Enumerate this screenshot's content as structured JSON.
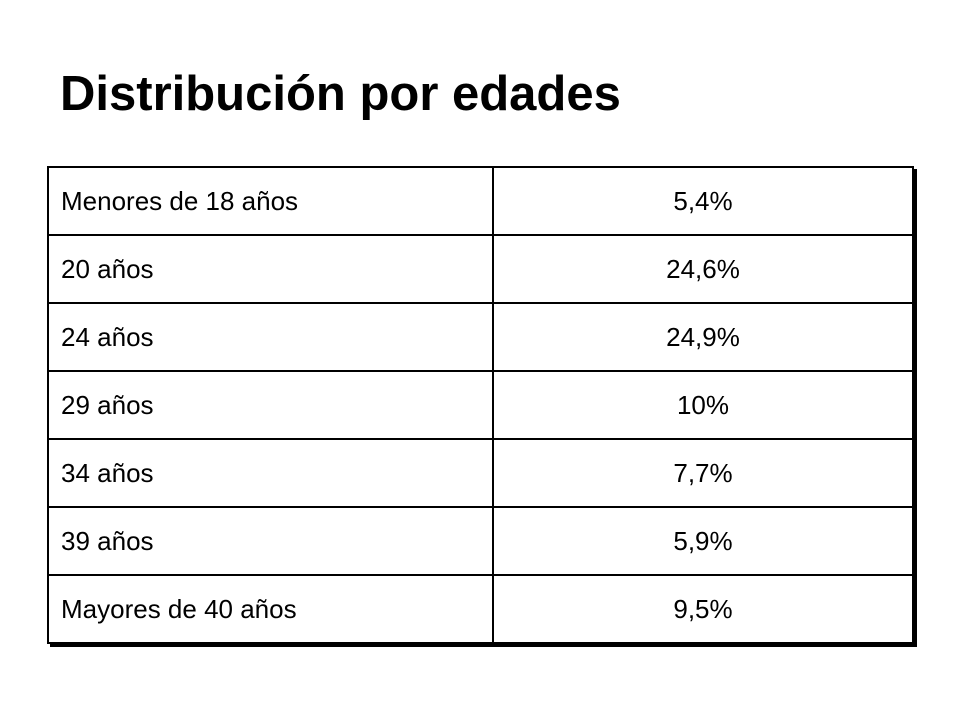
{
  "slide": {
    "title": "Distribución por edades"
  },
  "table": {
    "rows": [
      {
        "label": "Menores de 18 años",
        "value": "5,4%"
      },
      {
        "label": "20 años",
        "value": "24,6%"
      },
      {
        "label": "24 años",
        "value": "24,9%"
      },
      {
        "label": "29 años",
        "value": "10%"
      },
      {
        "label": "34 años",
        "value": "7,7%"
      },
      {
        "label": "39 años",
        "value": "5,9%"
      },
      {
        "label": "Mayores de 40 años",
        "value": "9,5%"
      }
    ]
  }
}
